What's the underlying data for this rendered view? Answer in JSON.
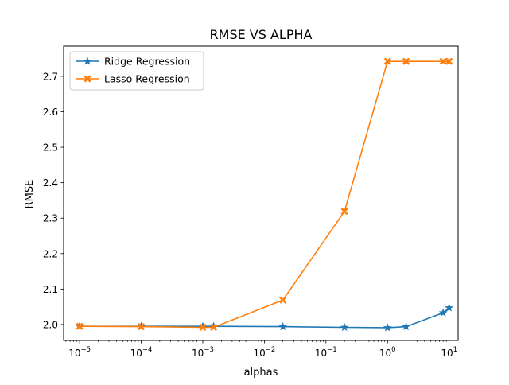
{
  "chart_data": {
    "type": "line",
    "title": "RMSE VS ALPHA",
    "xlabel": "alphas",
    "ylabel": "RMSE",
    "xscale": "log",
    "xlim": [
      5.5e-06,
      14
    ],
    "ylim": [
      1.955,
      2.785
    ],
    "grid": false,
    "legend_position": "top-left",
    "x_ticks": [
      {
        "value": 1e-05,
        "base": "10",
        "exp": "−5"
      },
      {
        "value": 0.0001,
        "base": "10",
        "exp": "−4"
      },
      {
        "value": 0.001,
        "base": "10",
        "exp": "−3"
      },
      {
        "value": 0.01,
        "base": "10",
        "exp": "−2"
      },
      {
        "value": 0.1,
        "base": "10",
        "exp": "−1"
      },
      {
        "value": 1,
        "base": "10",
        "exp": "0"
      },
      {
        "value": 10,
        "base": "10",
        "exp": "1"
      }
    ],
    "y_ticks": [
      {
        "value": 2.0,
        "label": "2.0"
      },
      {
        "value": 2.1,
        "label": "2.1"
      },
      {
        "value": 2.2,
        "label": "2.2"
      },
      {
        "value": 2.3,
        "label": "2.3"
      },
      {
        "value": 2.4,
        "label": "2.4"
      },
      {
        "value": 2.5,
        "label": "2.5"
      },
      {
        "value": 2.6,
        "label": "2.6"
      },
      {
        "value": 2.7,
        "label": "2.7"
      }
    ],
    "series": [
      {
        "name": "Ridge Regression",
        "color": "#1f77b4",
        "marker": "star",
        "x": [
          1e-05,
          0.0001,
          0.001,
          0.0015,
          0.02,
          0.2,
          1,
          2,
          8,
          10
        ],
        "y": [
          1.995,
          1.995,
          1.995,
          1.995,
          1.994,
          1.992,
          1.991,
          1.994,
          2.033,
          2.047
        ]
      },
      {
        "name": "Lasso Regression",
        "color": "#ff7f0e",
        "marker": "x-filled",
        "x": [
          1e-05,
          0.0001,
          0.001,
          0.0015,
          0.02,
          0.2,
          1,
          2,
          8,
          10
        ],
        "y": [
          1.995,
          1.994,
          1.992,
          1.992,
          2.069,
          2.319,
          2.742,
          2.742,
          2.742,
          2.742
        ]
      }
    ]
  }
}
